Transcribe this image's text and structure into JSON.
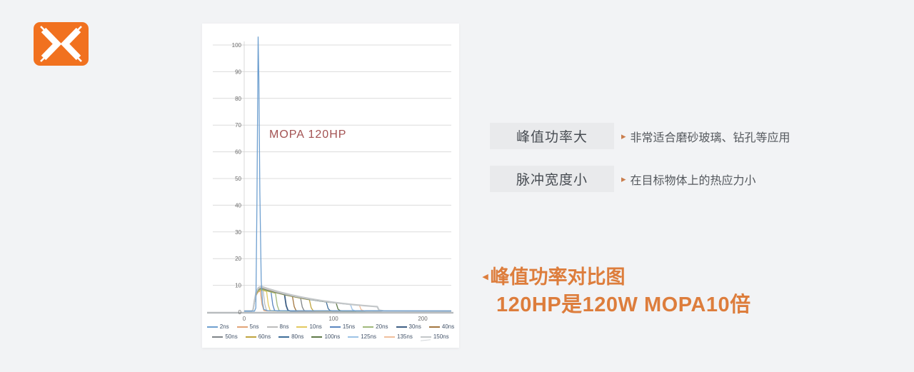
{
  "page": {
    "background": "#f2f3f5"
  },
  "logo": {
    "name": "brand-x-logo",
    "color": "#f1711f",
    "glyph_color": "#ffffff"
  },
  "chart_data": {
    "type": "line",
    "annotation": "MOPA 120HP",
    "annotation_color": "#a35252",
    "x_ticks": [
      0,
      100,
      200
    ],
    "y_ticks": [
      0,
      10,
      20,
      30,
      40,
      50,
      60,
      70,
      80,
      90,
      100
    ],
    "xlim": [
      0,
      232
    ],
    "ylim": [
      0,
      105
    ],
    "grid": true,
    "legend_position": "bottom",
    "series": [
      {
        "name": "2ns",
        "color": "#6fa0d0",
        "peak": 103,
        "end": 22,
        "spike": true
      },
      {
        "name": "5ns",
        "color": "#e2a477",
        "peak": 8.0,
        "end": 18
      },
      {
        "name": "8ns",
        "color": "#bcbcbc",
        "peak": 8.6,
        "end": 21
      },
      {
        "name": "10ns",
        "color": "#e3c95f",
        "peak": 8.3,
        "end": 25
      },
      {
        "name": "15ns",
        "color": "#5b86c0",
        "peak": 8.8,
        "end": 30
      },
      {
        "name": "20ns",
        "color": "#a0b87a",
        "peak": 8.5,
        "end": 35
      },
      {
        "name": "30ns",
        "color": "#3e5f85",
        "peak": 9.3,
        "end": 45,
        "width": 1.8
      },
      {
        "name": "40ns",
        "color": "#a3763f",
        "peak": 9.0,
        "end": 54
      },
      {
        "name": "50ns",
        "color": "#7f8488",
        "peak": 9.2,
        "end": 63
      },
      {
        "name": "60ns",
        "color": "#bfa43e",
        "peak": 8.8,
        "end": 73
      },
      {
        "name": "80ns",
        "color": "#3f6e99",
        "peak": 9.0,
        "end": 92
      },
      {
        "name": "100ns",
        "color": "#5e7947",
        "peak": 9.1,
        "end": 103
      },
      {
        "name": "125ns",
        "color": "#9dc3e6",
        "peak": 9.2,
        "end": 119
      },
      {
        "name": "135ns",
        "color": "#f0bf9d",
        "peak": 9.3,
        "end": 129
      },
      {
        "name": "150ns",
        "color": "#c3c7c9",
        "peak": 9.6,
        "end": 149,
        "width": 2.2
      }
    ]
  },
  "features": [
    {
      "bullet": "▸",
      "label": "峰值功率大",
      "desc": "非常适合磨砂玻璃、钻孔等应用"
    },
    {
      "bullet": "▸",
      "label": "脉冲宽度小",
      "desc": "在目标物体上的热应力小"
    }
  ],
  "caption": {
    "marker": "◂",
    "line1": "峰值功率对比图",
    "line2": "120HP是120W MOPA10倍",
    "color": "#dd7d3c"
  }
}
